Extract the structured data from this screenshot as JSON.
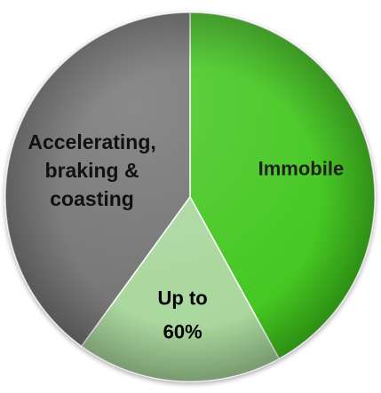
{
  "chart_data": {
    "type": "pie",
    "slices": [
      {
        "label_lines": [
          "Immobile"
        ],
        "value": 42,
        "color": "#3fc61c",
        "text_color": "#1f1f1f"
      },
      {
        "label_lines": [
          "Up to",
          "60%"
        ],
        "value": 18,
        "color": "#a7d69a",
        "text_color": "#000000"
      },
      {
        "label_lines": [
          "Accelerating,",
          "braking &",
          "coasting"
        ],
        "value": 40,
        "color": "#6f6f6f",
        "text_color": "#111111"
      }
    ],
    "start_angle_deg": 0,
    "legend": "none"
  }
}
